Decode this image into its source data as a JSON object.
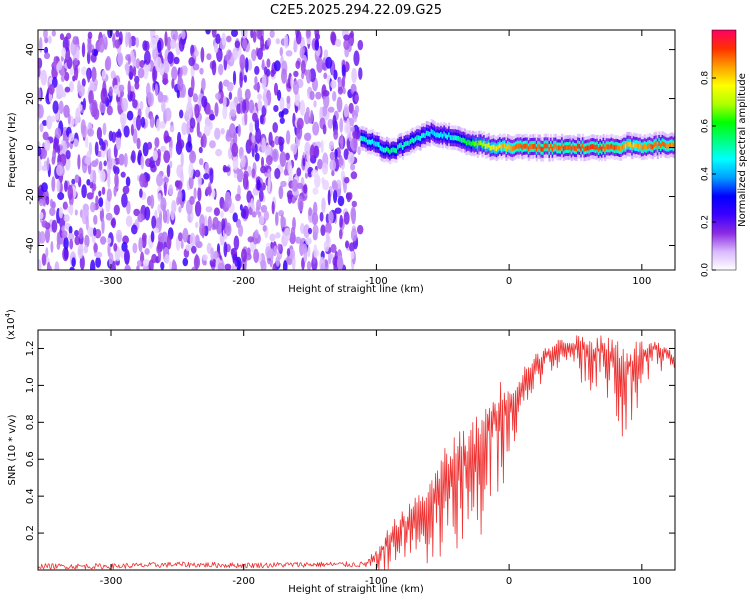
{
  "title": "C2E5.2025.294.22.09.G25",
  "chart_data": [
    {
      "type": "heatmap",
      "xlabel": "Height of straight line (km)",
      "ylabel": "Frequency (Hz)",
      "xlim": [
        -355,
        125
      ],
      "ylim": [
        -50,
        48
      ],
      "x_ticks": [
        -300,
        -200,
        -100,
        0,
        100
      ],
      "y_ticks": [
        -40,
        -20,
        0,
        20,
        40
      ],
      "colorbar": {
        "label": "Normalized spectral amplitude",
        "range": [
          0,
          1
        ],
        "ticks": [
          "0.0",
          "0.2",
          "0.4",
          "0.6",
          "0.8"
        ],
        "colors": [
          "#ffffff",
          "#d9b8ff",
          "#8a2be2",
          "#3a00ff",
          "#0000ff",
          "#00a0ff",
          "#00ffff",
          "#00ff80",
          "#00ff00",
          "#b0ff00",
          "#ffff00",
          "#ffa000",
          "#ff3000",
          "#ff0066"
        ]
      },
      "noise_region": {
        "x_range": [
          -355,
          -112
        ],
        "level": 0.15
      },
      "signal_trace": {
        "x": [
          -112,
          -100,
          -90,
          -80,
          -70,
          -60,
          -50,
          -40,
          -30,
          -20,
          -10,
          0,
          10,
          20,
          40,
          60,
          80,
          90,
          100,
          110,
          125
        ],
        "center_freq": [
          4,
          1,
          -2,
          1,
          4,
          6,
          5,
          4,
          2,
          1,
          0,
          0,
          0,
          0,
          0,
          0,
          0,
          1,
          0,
          1,
          1
        ],
        "peak_amplitude": [
          0.5,
          0.45,
          0.55,
          0.5,
          0.5,
          0.45,
          0.45,
          0.5,
          0.6,
          0.7,
          0.8,
          0.85,
          0.9,
          0.9,
          0.9,
          0.92,
          0.9,
          0.8,
          0.85,
          0.9,
          0.85
        ]
      }
    },
    {
      "type": "line",
      "xlabel": "Height of straight line (km)",
      "ylabel": "SNR (10 * v/v)",
      "y_multiplier": "(x10",
      "y_multiplier_exp": "4",
      "xlim": [
        -355,
        125
      ],
      "ylim": [
        0,
        1.3
      ],
      "x_ticks": [
        -300,
        -200,
        -100,
        0,
        100
      ],
      "y_ticks": [
        "0.2",
        "0.4",
        "0.6",
        "0.8",
        "1.0",
        "1.2"
      ],
      "series": [
        {
          "color": "#ee3333",
          "x": [
            -355,
            -300,
            -250,
            -200,
            -150,
            -110,
            -100,
            -95,
            -90,
            -85,
            -80,
            -75,
            -70,
            -65,
            -60,
            -55,
            -50,
            -45,
            -40,
            -35,
            -30,
            -25,
            -20,
            -15,
            -10,
            -5,
            0,
            5,
            10,
            15,
            20,
            25,
            30,
            35,
            40,
            50,
            60,
            70,
            80,
            90,
            100,
            110,
            115,
            120,
            125
          ],
          "y": [
            0.02,
            0.02,
            0.03,
            0.025,
            0.03,
            0.03,
            0.05,
            0.12,
            0.18,
            0.22,
            0.25,
            0.28,
            0.32,
            0.35,
            0.38,
            0.42,
            0.5,
            0.55,
            0.6,
            0.62,
            0.65,
            0.68,
            0.72,
            0.78,
            0.85,
            0.9,
            0.92,
            0.95,
            1.02,
            1.08,
            1.12,
            1.15,
            1.18,
            1.2,
            1.22,
            1.22,
            1.2,
            1.18,
            1.15,
            1.1,
            1.17,
            1.2,
            1.18,
            1.17,
            1.1
          ],
          "noise": [
            0.015,
            0.015,
            0.015,
            0.015,
            0.015,
            0.015,
            0.06,
            0.1,
            0.12,
            0.14,
            0.15,
            0.16,
            0.18,
            0.2,
            0.22,
            0.25,
            0.28,
            0.3,
            0.32,
            0.3,
            0.3,
            0.3,
            0.35,
            0.3,
            0.3,
            0.28,
            0.25,
            0.2,
            0.15,
            0.12,
            0.1,
            0.08,
            0.08,
            0.08,
            0.08,
            0.1,
            0.15,
            0.2,
            0.25,
            0.3,
            0.15,
            0.08,
            0.08,
            0.08,
            0.08
          ]
        }
      ]
    }
  ]
}
